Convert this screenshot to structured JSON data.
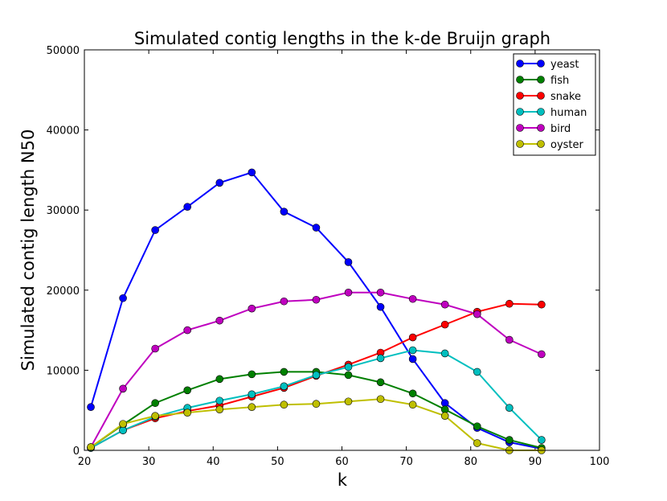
{
  "chart_data": {
    "type": "line",
    "title": "Simulated contig lengths in the k-de Bruijn graph",
    "xlabel": "k",
    "ylabel": "Simulated contig length N50",
    "xlim": [
      20,
      100
    ],
    "ylim": [
      0,
      50000
    ],
    "xticks": [
      "20",
      "30",
      "40",
      "50",
      "60",
      "70",
      "80",
      "90",
      "100"
    ],
    "yticks": [
      "0",
      "10000",
      "20000",
      "30000",
      "40000",
      "50000"
    ],
    "grid": false,
    "legend_position": "top-right",
    "x": [
      21,
      26,
      31,
      36,
      41,
      46,
      51,
      56,
      61,
      66,
      71,
      76,
      81,
      86,
      91
    ],
    "series": [
      {
        "name": "yeast",
        "color": "#0000ff",
        "values": [
          5400,
          19000,
          27500,
          30400,
          33400,
          34700,
          29800,
          27800,
          23500,
          17900,
          11400,
          5900,
          2800,
          1000,
          200
        ]
      },
      {
        "name": "fish",
        "color": "#008000",
        "values": [
          400,
          3200,
          5900,
          7500,
          8900,
          9500,
          9800,
          9800,
          9400,
          8500,
          7100,
          5100,
          3000,
          1300,
          300
        ]
      },
      {
        "name": "snake",
        "color": "#ff0000",
        "values": [
          300,
          2500,
          4000,
          4900,
          5600,
          6700,
          7800,
          9300,
          10700,
          12200,
          14100,
          15700,
          17300,
          18300,
          18200
        ]
      },
      {
        "name": "human",
        "color": "#00bfbf",
        "values": [
          300,
          2500,
          4200,
          5300,
          6200,
          7000,
          8000,
          9400,
          10400,
          11500,
          12500,
          12100,
          9800,
          5300,
          1300
        ]
      },
      {
        "name": "bird",
        "color": "#bf00bf",
        "values": [
          400,
          7700,
          12700,
          15000,
          16200,
          17700,
          18600,
          18800,
          19700,
          19700,
          18900,
          18200,
          17000,
          13800,
          12000
        ]
      },
      {
        "name": "oyster",
        "color": "#bfbf00",
        "values": [
          400,
          3300,
          4300,
          4700,
          5100,
          5400,
          5700,
          5800,
          6100,
          6400,
          5700,
          4300,
          900,
          0,
          0
        ]
      }
    ]
  }
}
